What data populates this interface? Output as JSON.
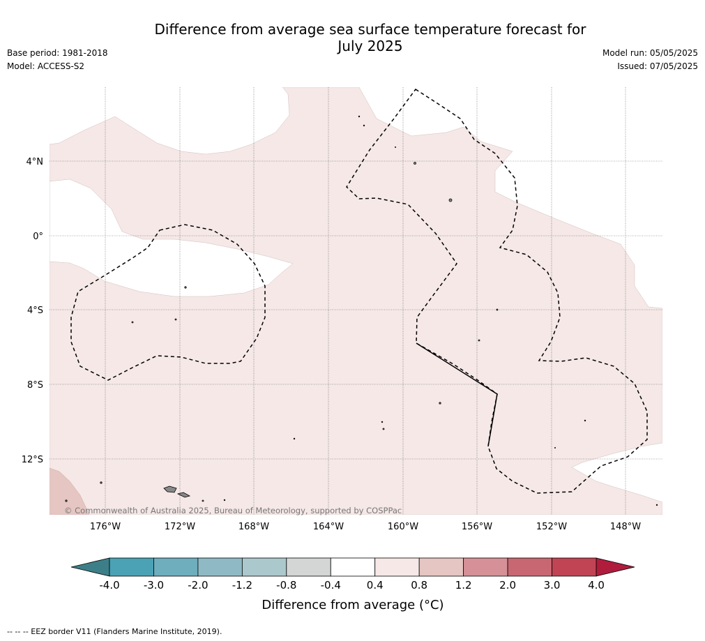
{
  "title_line1": "Difference from average sea surface temperature forecast for",
  "title_line2": "July 2025",
  "meta_left": [
    "Base period: 1981-2018",
    "Model: ACCESS-S2"
  ],
  "meta_right": [
    "Model run: 05/05/2025",
    "Issued: 07/05/2025"
  ],
  "copyright": "© Commonwealth of Australia 2025, Bureau of Meteorology, supported by COSPPac",
  "lat_labels": [
    "4°N",
    "0°",
    "4°S",
    "8°S",
    "12°S"
  ],
  "lon_labels": [
    "176°W",
    "172°W",
    "168°W",
    "164°W",
    "160°W",
    "156°W",
    "152°W",
    "148°W"
  ],
  "colorbar": {
    "ticks": [
      "-4.0",
      "-3.0",
      "-2.0",
      "-1.2",
      "-0.8",
      "-0.4",
      "0.4",
      "0.8",
      "1.2",
      "2.0",
      "3.0",
      "4.0"
    ],
    "under_color": "#3d7f88",
    "over_color": "#b01c3c",
    "colors": [
      "#4aa2b4",
      "#6eaebd",
      "#8fbac5",
      "#abc8cd",
      "#d4d6d6",
      "#ffffff",
      "#f5e8e7",
      "#e6c6c2",
      "#d59197",
      "#c86772",
      "#c04453"
    ],
    "label": "Difference from average (°C)"
  },
  "footer": "--  --  -- EEZ border V11 (Flanders Marine Institute, 2019).",
  "fill_colors": {
    "band_0_4_to_0_8": "#f5e8e7",
    "band_0_8_to_1_2": "#e6c6c2",
    "land": "#8a8a8a"
  }
}
